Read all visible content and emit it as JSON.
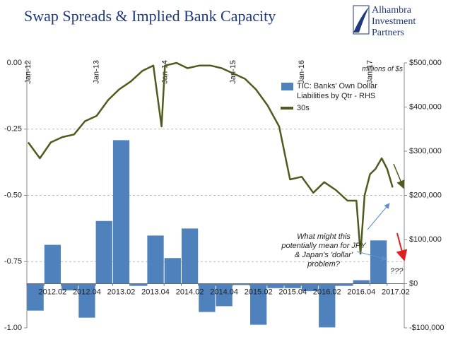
{
  "chart_data": {
    "type": "bar",
    "title": "Swap Spreads & Implied Bank Capacity",
    "logo": [
      "Alhambra",
      "Investment",
      "Partners"
    ],
    "y2_unit_note": "millions of $s",
    "annotations": [
      "What might this potentially mean for JPY & Japan's 'dollar' problem?",
      "???"
    ],
    "categories": [
      null,
      "2012.02",
      null,
      "2012.04",
      null,
      "2013.02",
      null,
      "2013.04",
      null,
      "2014.02",
      null,
      "2014.04",
      null,
      "2015.02",
      null,
      "2015.04",
      null,
      "2016.02",
      null,
      "2016.04",
      null,
      "2017.02"
    ],
    "xlim": [
      2011.98,
      2017.5
    ],
    "xticks": [
      {
        "value": 2012,
        "label": "Jan-12"
      },
      {
        "value": 2013,
        "label": "Jan-13"
      },
      {
        "value": 2014,
        "label": "Jan-14"
      },
      {
        "value": 2015,
        "label": "Jan-15"
      },
      {
        "value": 2016,
        "label": "Jan-16"
      },
      {
        "value": 2017,
        "label": "Jan-17"
      }
    ],
    "ylim": [
      -1,
      0
    ],
    "yticks": [
      {
        "value": 0,
        "label": "0.00"
      },
      {
        "value": -0.25,
        "label": "-0.25"
      },
      {
        "value": -0.5,
        "label": "-0.50"
      },
      {
        "value": -0.75,
        "label": "-0.75"
      },
      {
        "value": -1,
        "label": "-1.00"
      }
    ],
    "y2lim": [
      -100000,
      500000
    ],
    "y2ticks": [
      {
        "value": 500000,
        "label": "$500,000"
      },
      {
        "value": 400000,
        "label": "$400,000"
      },
      {
        "value": 300000,
        "label": "$300,000"
      },
      {
        "value": 200000,
        "label": "$200,000"
      },
      {
        "value": 100000,
        "label": "$100,000"
      },
      {
        "value": 0,
        "label": "$0"
      },
      {
        "value": -100000,
        "label": "-$100,000"
      }
    ],
    "grid": true,
    "series": [
      {
        "name": "TIC: Banks' Own Dollar Liabilities by Qtr - RHS",
        "type": "bar",
        "axis": "y2",
        "color": "#4f81bd",
        "values": [
          -61000,
          88000,
          -15000,
          -77000,
          142000,
          325000,
          -5000,
          109000,
          58000,
          125000,
          -64000,
          -51000,
          -3000,
          -93000,
          -10000,
          -10000,
          -17000,
          -99000,
          -5000,
          8000,
          98000,
          null
        ]
      },
      {
        "name": "30s",
        "type": "line",
        "color": "#4f5b1e",
        "x": [
          2012.0,
          2012.17,
          2012.33,
          2012.5,
          2012.67,
          2012.83,
          2013.0,
          2013.17,
          2013.33,
          2013.5,
          2013.67,
          2013.83,
          2013.95,
          2014.0,
          2014.17,
          2014.33,
          2014.5,
          2014.67,
          2014.83,
          2015.0,
          2015.17,
          2015.33,
          2015.5,
          2015.67,
          2015.83,
          2016.0,
          2016.17,
          2016.33,
          2016.5,
          2016.67,
          2016.8,
          2016.86,
          2016.92,
          2017.0,
          2017.08,
          2017.17,
          2017.25,
          2017.33
        ],
        "values": [
          -0.3,
          -0.36,
          -0.3,
          -0.28,
          -0.27,
          -0.22,
          -0.2,
          -0.14,
          -0.1,
          -0.07,
          -0.03,
          -0.01,
          -0.24,
          -0.01,
          0.0,
          -0.02,
          -0.01,
          -0.01,
          -0.02,
          -0.04,
          -0.06,
          -0.1,
          -0.16,
          -0.24,
          -0.44,
          -0.43,
          -0.49,
          -0.45,
          -0.48,
          -0.52,
          -0.52,
          -0.72,
          -0.5,
          -0.42,
          -0.4,
          -0.36,
          -0.4,
          -0.47
        ]
      }
    ]
  }
}
